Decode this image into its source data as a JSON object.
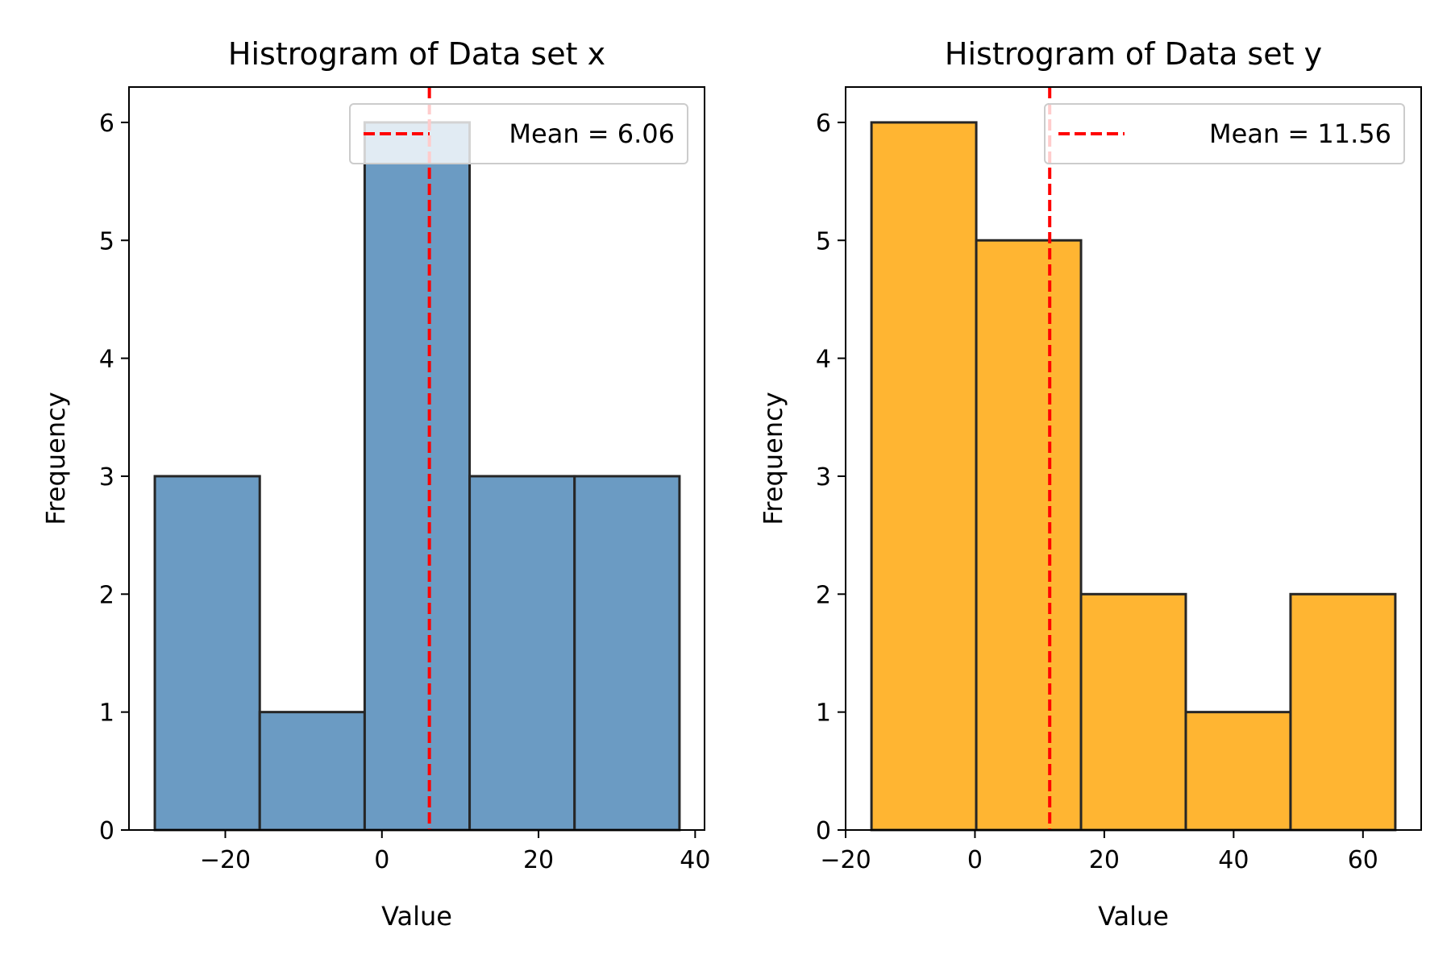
{
  "colors": {
    "mean_line": "#ff0000",
    "bar_edge": "#262626"
  },
  "chart_data": [
    {
      "type": "bar",
      "title": "Histrogram of Data set x",
      "xlabel": "Value",
      "ylabel": "Frequency",
      "xlim": [
        -32.3,
        41.2
      ],
      "ylim": [
        0,
        6.3
      ],
      "xticks": [
        -20,
        0,
        20,
        40
      ],
      "xtick_labels": [
        "−20",
        "0",
        "20",
        "40"
      ],
      "yticks": [
        0,
        1,
        2,
        3,
        4,
        5,
        6
      ],
      "ytick_labels": [
        "0",
        "1",
        "2",
        "3",
        "4",
        "5",
        "6"
      ],
      "bin_edges": [
        -29.0,
        -15.6,
        -2.2,
        11.2,
        24.6,
        38.0
      ],
      "values": [
        3,
        1,
        6,
        3,
        3
      ],
      "bar_color": "#6b9bc3",
      "mean": 6.06,
      "legend": {
        "label": "Mean = 6.06",
        "placement": "upper right"
      },
      "grid": false
    },
    {
      "type": "bar",
      "title": "Histrogram of Data set y",
      "xlabel": "Value",
      "ylabel": "Frequency",
      "xlim": [
        -20.0,
        69.0
      ],
      "ylim": [
        0,
        6.3
      ],
      "xticks": [
        -20,
        0,
        20,
        40,
        60
      ],
      "xtick_labels": [
        "−20",
        "0",
        "20",
        "40",
        "60"
      ],
      "yticks": [
        0,
        1,
        2,
        3,
        4,
        5,
        6
      ],
      "ytick_labels": [
        "0",
        "1",
        "2",
        "3",
        "4",
        "5",
        "6"
      ],
      "bin_edges": [
        -16.0,
        0.2,
        16.4,
        32.6,
        48.8,
        65.0
      ],
      "values": [
        6,
        5,
        2,
        1,
        2
      ],
      "bar_color": "#ffb532",
      "mean": 11.56,
      "legend": {
        "label": "Mean = 11.56",
        "placement": "upper right"
      },
      "grid": false
    }
  ]
}
